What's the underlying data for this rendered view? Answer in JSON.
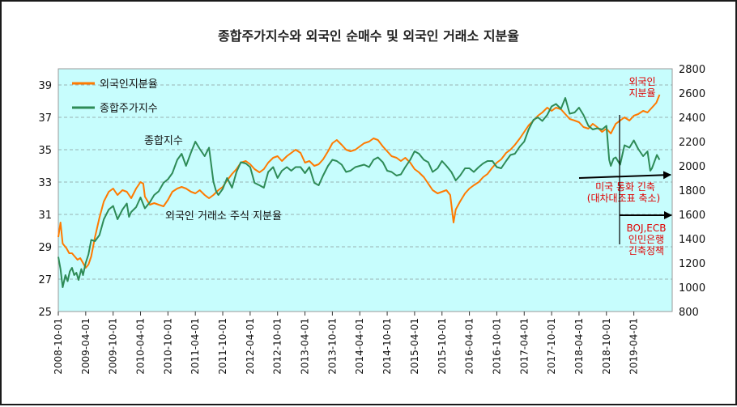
{
  "chart_data": {
    "type": "line",
    "title": "종합주가지수와 외국인 순매수 및 외국인 거래소 지분율",
    "x_tick_labels": [
      "2008-10-01",
      "2009-04-01",
      "2009-10-01",
      "2010-04-01",
      "2010-10-01",
      "2011-04-01",
      "2011-10-01",
      "2012-04-01",
      "2012-10-01",
      "2013-04-01",
      "2013-10-01",
      "2014-04-01",
      "2014-10-01",
      "2015-04-01",
      "2015-10-01",
      "2016-04-01",
      "2016-10-01",
      "2017-04-01",
      "2017-10-01",
      "2018-04-01",
      "2018-10-01",
      "2019-04-01"
    ],
    "y_left_ticks": [
      "25",
      "27",
      "29",
      "31",
      "33",
      "35",
      "37",
      "39"
    ],
    "y_right_ticks": [
      "800",
      "1000",
      "1200",
      "1400",
      "1600",
      "1800",
      "2000",
      "2200",
      "2400",
      "2600",
      "2800"
    ],
    "ylim_left": [
      25,
      40
    ],
    "ylim_right": [
      800,
      2800
    ],
    "xlim": [
      2008.75,
      2019.95
    ],
    "legend": [
      "외국인지분율",
      "종합주가지수"
    ],
    "legend_position": "top-left",
    "grid": "horizontal dashed",
    "background_color": "#c7fdfd",
    "series": [
      {
        "name": "외국인지분율",
        "axis": "left",
        "color": "#ff7a00",
        "points": [
          [
            2008.75,
            29.6
          ],
          [
            2008.79,
            30.5
          ],
          [
            2008.83,
            29.2
          ],
          [
            2008.9,
            28.9
          ],
          [
            2008.95,
            28.6
          ],
          [
            2009.0,
            28.6
          ],
          [
            2009.05,
            28.4
          ],
          [
            2009.1,
            28.2
          ],
          [
            2009.15,
            28.3
          ],
          [
            2009.2,
            28.0
          ],
          [
            2009.25,
            27.7
          ],
          [
            2009.3,
            27.9
          ],
          [
            2009.35,
            28.4
          ],
          [
            2009.42,
            29.6
          ],
          [
            2009.5,
            30.8
          ],
          [
            2009.58,
            31.8
          ],
          [
            2009.67,
            32.4
          ],
          [
            2009.75,
            32.6
          ],
          [
            2009.83,
            32.2
          ],
          [
            2009.92,
            32.5
          ],
          [
            2010.0,
            32.4
          ],
          [
            2010.08,
            32.0
          ],
          [
            2010.17,
            32.6
          ],
          [
            2010.25,
            33.0
          ],
          [
            2010.3,
            32.9
          ],
          [
            2010.33,
            32.1
          ],
          [
            2010.42,
            31.6
          ],
          [
            2010.5,
            31.7
          ],
          [
            2010.58,
            31.6
          ],
          [
            2010.67,
            31.5
          ],
          [
            2010.75,
            31.9
          ],
          [
            2010.83,
            32.4
          ],
          [
            2010.92,
            32.6
          ],
          [
            2011.0,
            32.7
          ],
          [
            2011.08,
            32.6
          ],
          [
            2011.17,
            32.4
          ],
          [
            2011.25,
            32.3
          ],
          [
            2011.33,
            32.5
          ],
          [
            2011.42,
            32.2
          ],
          [
            2011.5,
            32.0
          ],
          [
            2011.58,
            32.2
          ],
          [
            2011.67,
            32.5
          ],
          [
            2011.75,
            32.7
          ],
          [
            2011.83,
            33.1
          ],
          [
            2011.92,
            33.5
          ],
          [
            2012.0,
            33.8
          ],
          [
            2012.08,
            34.2
          ],
          [
            2012.17,
            34.3
          ],
          [
            2012.25,
            34.1
          ],
          [
            2012.33,
            33.8
          ],
          [
            2012.42,
            33.6
          ],
          [
            2012.5,
            33.8
          ],
          [
            2012.58,
            34.2
          ],
          [
            2012.67,
            34.5
          ],
          [
            2012.75,
            34.6
          ],
          [
            2012.83,
            34.3
          ],
          [
            2012.92,
            34.6
          ],
          [
            2013.0,
            34.8
          ],
          [
            2013.08,
            35.0
          ],
          [
            2013.17,
            34.8
          ],
          [
            2013.25,
            34.2
          ],
          [
            2013.33,
            34.3
          ],
          [
            2013.42,
            34.0
          ],
          [
            2013.5,
            34.1
          ],
          [
            2013.58,
            34.4
          ],
          [
            2013.67,
            34.9
          ],
          [
            2013.75,
            35.4
          ],
          [
            2013.83,
            35.6
          ],
          [
            2013.92,
            35.3
          ],
          [
            2014.0,
            35.0
          ],
          [
            2014.08,
            34.9
          ],
          [
            2014.17,
            35.0
          ],
          [
            2014.25,
            35.2
          ],
          [
            2014.33,
            35.4
          ],
          [
            2014.42,
            35.5
          ],
          [
            2014.5,
            35.7
          ],
          [
            2014.58,
            35.6
          ],
          [
            2014.67,
            35.2
          ],
          [
            2014.75,
            34.9
          ],
          [
            2014.83,
            34.6
          ],
          [
            2014.92,
            34.5
          ],
          [
            2015.0,
            34.3
          ],
          [
            2015.08,
            34.5
          ],
          [
            2015.17,
            34.2
          ],
          [
            2015.25,
            33.8
          ],
          [
            2015.33,
            33.6
          ],
          [
            2015.42,
            33.3
          ],
          [
            2015.5,
            32.9
          ],
          [
            2015.58,
            32.5
          ],
          [
            2015.67,
            32.3
          ],
          [
            2015.75,
            32.4
          ],
          [
            2015.83,
            32.5
          ],
          [
            2015.9,
            32.2
          ],
          [
            2015.96,
            30.5
          ],
          [
            2016.0,
            31.3
          ],
          [
            2016.08,
            31.8
          ],
          [
            2016.17,
            32.3
          ],
          [
            2016.25,
            32.6
          ],
          [
            2016.33,
            32.8
          ],
          [
            2016.42,
            33.0
          ],
          [
            2016.5,
            33.3
          ],
          [
            2016.58,
            33.5
          ],
          [
            2016.67,
            33.9
          ],
          [
            2016.75,
            34.2
          ],
          [
            2016.83,
            34.4
          ],
          [
            2016.92,
            34.8
          ],
          [
            2017.0,
            35.0
          ],
          [
            2017.08,
            35.3
          ],
          [
            2017.17,
            35.7
          ],
          [
            2017.25,
            36.1
          ],
          [
            2017.33,
            36.5
          ],
          [
            2017.42,
            36.8
          ],
          [
            2017.5,
            37.1
          ],
          [
            2017.58,
            37.3
          ],
          [
            2017.67,
            37.6
          ],
          [
            2017.75,
            37.4
          ],
          [
            2017.83,
            37.6
          ],
          [
            2017.92,
            37.5
          ],
          [
            2018.0,
            37.2
          ],
          [
            2018.08,
            36.9
          ],
          [
            2018.17,
            36.8
          ],
          [
            2018.25,
            36.7
          ],
          [
            2018.33,
            36.4
          ],
          [
            2018.42,
            36.3
          ],
          [
            2018.5,
            36.6
          ],
          [
            2018.58,
            36.4
          ],
          [
            2018.67,
            36.1
          ],
          [
            2018.75,
            36.3
          ],
          [
            2018.83,
            36.0
          ],
          [
            2018.92,
            36.6
          ],
          [
            2019.0,
            36.8
          ],
          [
            2019.08,
            37.0
          ],
          [
            2019.17,
            36.8
          ],
          [
            2019.25,
            37.1
          ],
          [
            2019.33,
            37.2
          ],
          [
            2019.42,
            37.4
          ],
          [
            2019.5,
            37.3
          ],
          [
            2019.58,
            37.6
          ],
          [
            2019.66,
            37.9
          ],
          [
            2019.72,
            38.4
          ]
        ]
      },
      {
        "name": "종합주가지수",
        "axis": "right",
        "color": "#2e8b57",
        "points": [
          [
            2008.75,
            1250
          ],
          [
            2008.79,
            1150
          ],
          [
            2008.83,
            1000
          ],
          [
            2008.88,
            1100
          ],
          [
            2008.92,
            1050
          ],
          [
            2008.96,
            1130
          ],
          [
            2009.0,
            1160
          ],
          [
            2009.04,
            1100
          ],
          [
            2009.08,
            1120
          ],
          [
            2009.12,
            1060
          ],
          [
            2009.17,
            1150
          ],
          [
            2009.2,
            1100
          ],
          [
            2009.25,
            1200
          ],
          [
            2009.3,
            1270
          ],
          [
            2009.35,
            1390
          ],
          [
            2009.42,
            1380
          ],
          [
            2009.5,
            1430
          ],
          [
            2009.58,
            1560
          ],
          [
            2009.67,
            1640
          ],
          [
            2009.75,
            1670
          ],
          [
            2009.83,
            1560
          ],
          [
            2009.92,
            1640
          ],
          [
            2010.0,
            1690
          ],
          [
            2010.04,
            1580
          ],
          [
            2010.08,
            1620
          ],
          [
            2010.17,
            1660
          ],
          [
            2010.25,
            1740
          ],
          [
            2010.33,
            1650
          ],
          [
            2010.42,
            1700
          ],
          [
            2010.5,
            1760
          ],
          [
            2010.58,
            1790
          ],
          [
            2010.67,
            1860
          ],
          [
            2010.75,
            1890
          ],
          [
            2010.83,
            1940
          ],
          [
            2010.92,
            2050
          ],
          [
            2011.0,
            2100
          ],
          [
            2011.08,
            2000
          ],
          [
            2011.17,
            2110
          ],
          [
            2011.25,
            2200
          ],
          [
            2011.33,
            2140
          ],
          [
            2011.42,
            2080
          ],
          [
            2011.5,
            2150
          ],
          [
            2011.58,
            1870
          ],
          [
            2011.63,
            1790
          ],
          [
            2011.67,
            1760
          ],
          [
            2011.75,
            1810
          ],
          [
            2011.83,
            1900
          ],
          [
            2011.92,
            1820
          ],
          [
            2012.0,
            1950
          ],
          [
            2012.08,
            2030
          ],
          [
            2012.17,
            2020
          ],
          [
            2012.25,
            1990
          ],
          [
            2012.33,
            1860
          ],
          [
            2012.42,
            1840
          ],
          [
            2012.5,
            1820
          ],
          [
            2012.58,
            1950
          ],
          [
            2012.67,
            1990
          ],
          [
            2012.75,
            1900
          ],
          [
            2012.83,
            1960
          ],
          [
            2012.92,
            1990
          ],
          [
            2013.0,
            1960
          ],
          [
            2013.08,
            1990
          ],
          [
            2013.17,
            1990
          ],
          [
            2013.25,
            1940
          ],
          [
            2013.33,
            1990
          ],
          [
            2013.42,
            1860
          ],
          [
            2013.5,
            1840
          ],
          [
            2013.58,
            1920
          ],
          [
            2013.67,
            2000
          ],
          [
            2013.75,
            2050
          ],
          [
            2013.83,
            2040
          ],
          [
            2013.92,
            2010
          ],
          [
            2014.0,
            1950
          ],
          [
            2014.08,
            1960
          ],
          [
            2014.17,
            1990
          ],
          [
            2014.25,
            2000
          ],
          [
            2014.33,
            2010
          ],
          [
            2014.42,
            1990
          ],
          [
            2014.5,
            2050
          ],
          [
            2014.58,
            2070
          ],
          [
            2014.67,
            2030
          ],
          [
            2014.75,
            1960
          ],
          [
            2014.83,
            1950
          ],
          [
            2014.92,
            1920
          ],
          [
            2015.0,
            1930
          ],
          [
            2015.08,
            1990
          ],
          [
            2015.17,
            2050
          ],
          [
            2015.25,
            2120
          ],
          [
            2015.33,
            2100
          ],
          [
            2015.42,
            2050
          ],
          [
            2015.5,
            2030
          ],
          [
            2015.58,
            1950
          ],
          [
            2015.67,
            1980
          ],
          [
            2015.75,
            2040
          ],
          [
            2015.83,
            2000
          ],
          [
            2015.92,
            1950
          ],
          [
            2016.0,
            1880
          ],
          [
            2016.08,
            1920
          ],
          [
            2016.17,
            1980
          ],
          [
            2016.25,
            1980
          ],
          [
            2016.33,
            1950
          ],
          [
            2016.42,
            1990
          ],
          [
            2016.5,
            2020
          ],
          [
            2016.58,
            2040
          ],
          [
            2016.67,
            2040
          ],
          [
            2016.75,
            1990
          ],
          [
            2016.83,
            1980
          ],
          [
            2016.92,
            2040
          ],
          [
            2017.0,
            2090
          ],
          [
            2017.08,
            2100
          ],
          [
            2017.17,
            2160
          ],
          [
            2017.25,
            2200
          ],
          [
            2017.33,
            2300
          ],
          [
            2017.42,
            2380
          ],
          [
            2017.5,
            2400
          ],
          [
            2017.58,
            2370
          ],
          [
            2017.67,
            2420
          ],
          [
            2017.75,
            2490
          ],
          [
            2017.83,
            2510
          ],
          [
            2017.92,
            2470
          ],
          [
            2018.0,
            2560
          ],
          [
            2018.08,
            2430
          ],
          [
            2018.17,
            2440
          ],
          [
            2018.25,
            2480
          ],
          [
            2018.33,
            2420
          ],
          [
            2018.42,
            2330
          ],
          [
            2018.5,
            2300
          ],
          [
            2018.58,
            2310
          ],
          [
            2018.67,
            2300
          ],
          [
            2018.75,
            2330
          ],
          [
            2018.8,
            2050
          ],
          [
            2018.83,
            2000
          ],
          [
            2018.88,
            2060
          ],
          [
            2018.92,
            2070
          ],
          [
            2019.0,
            2010
          ],
          [
            2019.08,
            2170
          ],
          [
            2019.17,
            2150
          ],
          [
            2019.25,
            2210
          ],
          [
            2019.33,
            2140
          ],
          [
            2019.42,
            2080
          ],
          [
            2019.5,
            2120
          ],
          [
            2019.55,
            1960
          ],
          [
            2019.58,
            1980
          ],
          [
            2019.67,
            2090
          ],
          [
            2019.72,
            2050
          ]
        ]
      }
    ],
    "annotations": [
      {
        "id": "kospi",
        "text": "종합지수"
      },
      {
        "id": "foreign_share",
        "text": "외국인 거래소 주식 지분율"
      },
      {
        "id": "foreign_ratio_l1",
        "text": "외국인"
      },
      {
        "id": "foreign_ratio_l2",
        "text": "지분율"
      },
      {
        "id": "us_tight_l1",
        "text": "미국 통화 긴축"
      },
      {
        "id": "us_tight_l2",
        "text": "(대차대조표 축소)"
      },
      {
        "id": "boj_l1",
        "text": "BOJ,ECB"
      },
      {
        "id": "boj_l2",
        "text": "인민은행"
      },
      {
        "id": "boj_l3",
        "text": "긴축정책"
      }
    ]
  }
}
